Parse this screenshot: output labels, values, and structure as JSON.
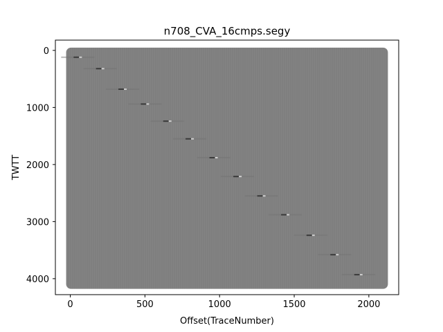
{
  "chart_data": {
    "type": "heatmap",
    "title": "n708_CVA_16cmps.segy",
    "xlabel": "Offset(TraceNumber)",
    "ylabel": "TWTT",
    "xlim": [
      -100,
      2200
    ],
    "ylim": [
      4280,
      -180
    ],
    "x_range": [
      0,
      2100
    ],
    "y_range": [
      0,
      4130
    ],
    "y_inverted": true,
    "grid": false,
    "xticks": [
      0,
      500,
      1000,
      1500,
      2000
    ],
    "xtick_labels": [
      "0",
      "500",
      "1000",
      "1500",
      "2000"
    ],
    "yticks": [
      0,
      1000,
      2000,
      3000,
      4000
    ],
    "ytick_labels": [
      "0",
      "1000",
      "2000",
      "3000",
      "4000"
    ],
    "colormap": "gray",
    "background_color": "#808080",
    "event_points": [
      {
        "x": 50,
        "y": 120
      },
      {
        "x": 200,
        "y": 320
      },
      {
        "x": 350,
        "y": 680
      },
      {
        "x": 500,
        "y": 940
      },
      {
        "x": 650,
        "y": 1240
      },
      {
        "x": 800,
        "y": 1550
      },
      {
        "x": 960,
        "y": 1880
      },
      {
        "x": 1120,
        "y": 2210
      },
      {
        "x": 1280,
        "y": 2550
      },
      {
        "x": 1440,
        "y": 2880
      },
      {
        "x": 1610,
        "y": 3240
      },
      {
        "x": 1770,
        "y": 3580
      },
      {
        "x": 1930,
        "y": 3930
      }
    ]
  }
}
